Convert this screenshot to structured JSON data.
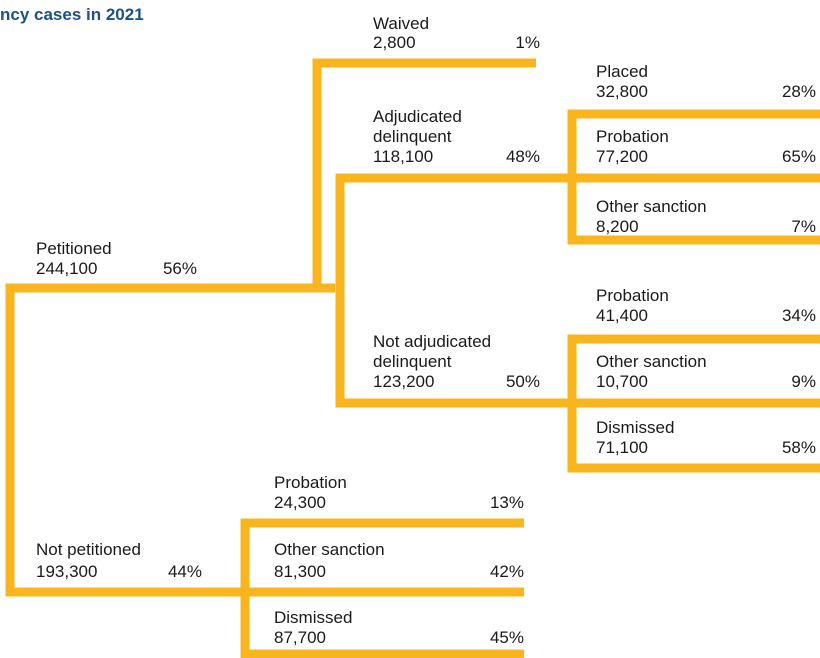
{
  "title": "ncy cases in 2021",
  "colors": {
    "line": "#F9B51E",
    "title": "#1F4F8C",
    "text": "#1A1A1A"
  },
  "nodes": {
    "waived": {
      "label": "Waived",
      "count": "2,800",
      "pct": "1%"
    },
    "adjudicated": {
      "label1": "Adjudicated",
      "label2": "delinquent",
      "count": "118,100",
      "pct": "48%"
    },
    "adj_placed": {
      "label": "Placed",
      "count": "32,800",
      "pct": "28%"
    },
    "adj_probation": {
      "label": "Probation",
      "count": "77,200",
      "pct": "65%"
    },
    "adj_other": {
      "label": "Other sanction",
      "count": "8,200",
      "pct": "7%"
    },
    "petitioned": {
      "label": "Petitioned",
      "count": "244,100",
      "pct": "56%"
    },
    "not_adjudicated": {
      "label1": "Not adjudicated",
      "label2": "delinquent",
      "count": "123,200",
      "pct": "50%"
    },
    "nadj_probation": {
      "label": "Probation",
      "count": "41,400",
      "pct": "34%"
    },
    "nadj_other": {
      "label": "Other sanction",
      "count": "10,700",
      "pct": "9%"
    },
    "nadj_dismissed": {
      "label": "Dismissed",
      "count": "71,100",
      "pct": "58%"
    },
    "not_petitioned": {
      "label": "Not petitioned",
      "count": "193,300",
      "pct": "44%"
    },
    "np_probation": {
      "label": "Probation",
      "count": "24,300",
      "pct": "13%"
    },
    "np_other": {
      "label": "Other sanction",
      "count": "81,300",
      "pct": "42%"
    },
    "np_dismissed": {
      "label": "Dismissed",
      "count": "87,700",
      "pct": "45%"
    }
  }
}
